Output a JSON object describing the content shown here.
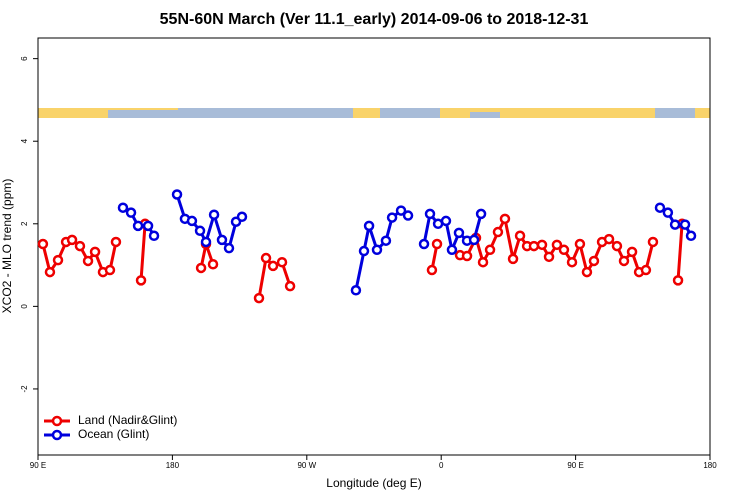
{
  "chart_data": {
    "type": "line",
    "title": "55N-60N March (Ver 11.1_early)   2014-09-06 to 2018-12-31",
    "x_label": "Longitude (deg E)",
    "y_label": "XCO2 - MLO trend (ppm)",
    "xlim": [
      90,
      540
    ],
    "ylim": [
      -3.6,
      6.5
    ],
    "xticks": [
      {
        "value": 90,
        "label": "90 E"
      },
      180,
      {
        "value": 270,
        "label": "90 W"
      },
      {
        "value": 360,
        "label": "0"
      },
      {
        "value": 450,
        "label": "90 E"
      },
      {
        "value": 540,
        "label": "180"
      }
    ],
    "yticks": [
      -2,
      0,
      2,
      4,
      6
    ],
    "legend": "bottom-left",
    "series": [
      {
        "name": "Land (Nadir&Glint)",
        "color": "#ee0000",
        "x": [
          93.3,
          98.0,
          103.4,
          108.8,
          112.8,
          118.1,
          123.5,
          128.2,
          133.5,
          138.2,
          142.2,
          150.3,
          159.0,
          161.7,
          180.4,
          199.2,
          202.5,
          207.2,
          222.6,
          238.0,
          242.7,
          247.4,
          253.4,
          258.8,
          305.6,
          353.8,
          357.2,
          364.6,
          372.6,
          377.3,
          383.3,
          388.0,
          392.7,
          398.0,
          402.7,
          408.1,
          412.8,
          417.5,
          422.1,
          427.5,
          432.2,
          437.5,
          442.2,
          447.6,
          452.9,
          457.6,
          462.3,
          467.7,
          472.4,
          477.7,
          482.4,
          487.8,
          492.5,
          497.1,
          501.8,
          509.9,
          518.6,
          521.3
        ],
        "values": [
          1.51,
          0.83,
          1.12,
          1.56,
          1.61,
          1.46,
          1.1,
          1.32,
          0.83,
          0.88,
          1.56,
          null,
          0.63,
          2.0,
          null,
          0.93,
          1.51,
          1.02,
          null,
          0.2,
          1.17,
          0.98,
          1.07,
          0.49,
          null,
          0.88,
          1.51,
          null,
          1.24,
          1.22,
          1.66,
          1.07,
          1.37,
          1.8,
          2.12,
          1.15,
          1.71,
          1.46,
          1.46,
          1.49,
          1.2,
          1.49,
          1.37,
          1.07,
          1.51,
          0.83,
          1.1,
          1.56,
          1.63,
          1.46,
          1.1,
          1.32,
          0.83,
          0.88,
          1.56,
          null,
          0.63,
          2.0
        ]
      },
      {
        "name": "Ocean (Glint)",
        "color": "#0000dd",
        "x": [
          146.9,
          152.3,
          157.0,
          163.7,
          167.7,
          175.0,
          183.1,
          188.4,
          193.1,
          198.5,
          202.5,
          207.9,
          213.2,
          217.9,
          222.6,
          226.6,
          265.4,
          302.9,
          308.3,
          311.7,
          317.0,
          323.0,
          327.1,
          333.1,
          337.8,
          343.1,
          348.5,
          352.5,
          357.9,
          363.2,
          367.2,
          371.9,
          377.3,
          382.0,
          386.7,
          446.3,
          506.5,
          511.8,
          516.6,
          523.3,
          527.3
        ],
        "values": [
          2.39,
          2.27,
          1.95,
          1.95,
          1.71,
          null,
          2.71,
          2.12,
          2.07,
          1.83,
          1.56,
          2.22,
          1.61,
          1.41,
          2.05,
          2.17,
          null,
          0.39,
          1.34,
          1.95,
          1.37,
          1.59,
          2.15,
          2.32,
          2.2,
          null,
          1.51,
          2.24,
          2.0,
          2.07,
          1.37,
          1.78,
          1.59,
          1.61,
          2.24,
          null,
          2.39,
          2.27,
          1.98,
          1.98,
          1.71
        ]
      }
    ]
  }
}
